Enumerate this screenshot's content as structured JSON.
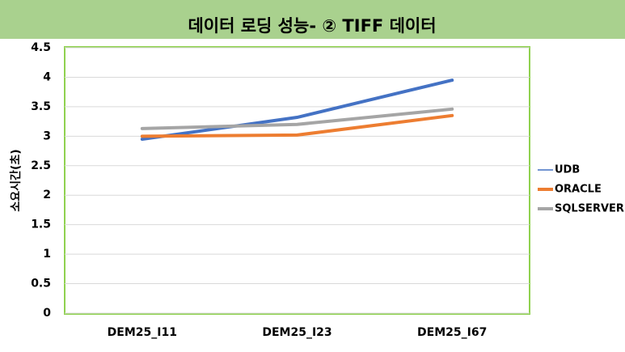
{
  "chart_data": {
    "type": "line",
    "title": "데이터 로딩 성능- ② TIFF 데이터",
    "y_label": "소요시간(초)",
    "categories": [
      "DEM25_I11",
      "DEM25_I23",
      "DEM25_I67"
    ],
    "series": [
      {
        "name": "UDB",
        "color": "#4472c4",
        "values": [
          2.95,
          3.32,
          3.95
        ]
      },
      {
        "name": "ORACLE",
        "color": "#ed7d31",
        "values": [
          3.0,
          3.02,
          3.35
        ]
      },
      {
        "name": "SQLSERVER",
        "color": "#a5a5a5",
        "values": [
          3.13,
          3.2,
          3.46
        ]
      }
    ],
    "ylim": [
      0,
      4.5
    ],
    "yticks": [
      0,
      0.5,
      1,
      1.5,
      2,
      2.5,
      3,
      3.5,
      4,
      4.5
    ],
    "grid": true,
    "legend": "right"
  }
}
